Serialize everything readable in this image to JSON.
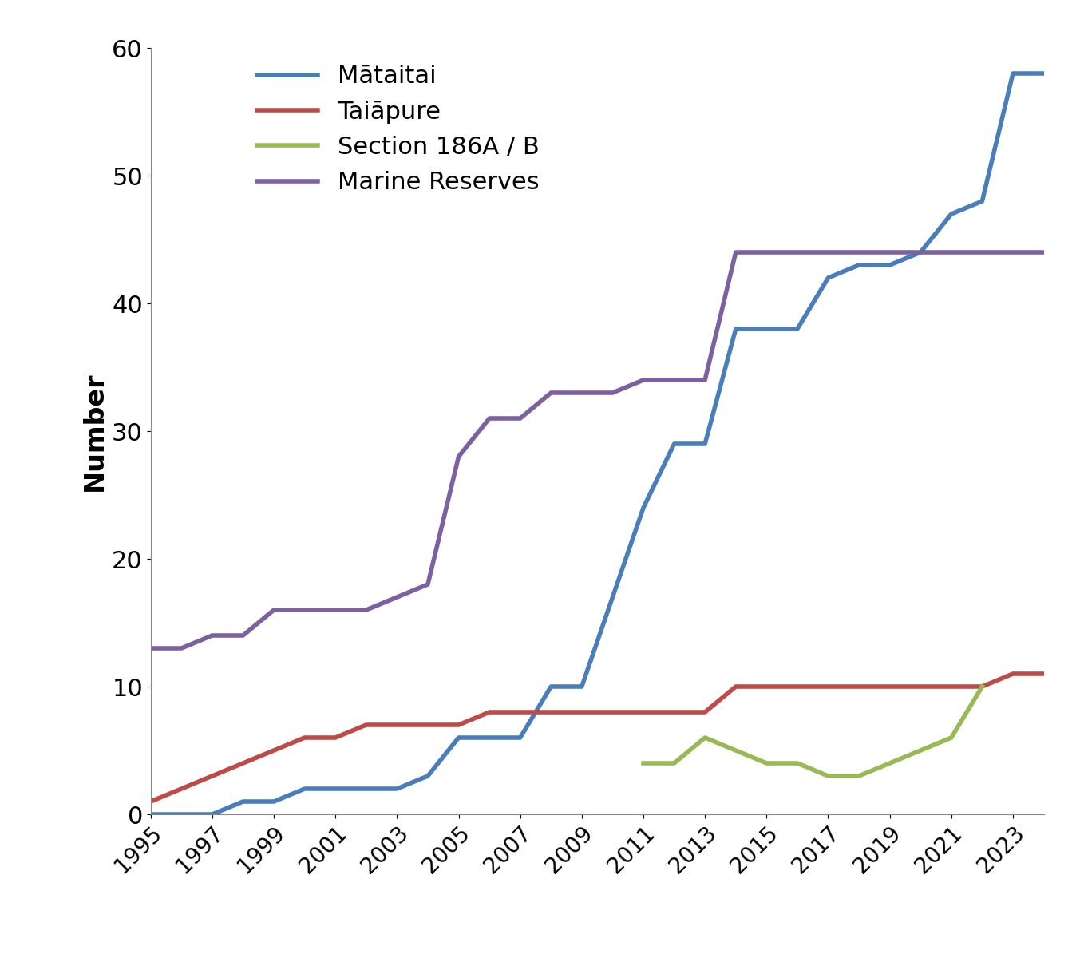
{
  "chart_data": {
    "type": "line",
    "y_label": "Number",
    "x": [
      1995,
      1996,
      1997,
      1998,
      1999,
      2000,
      2001,
      2002,
      2003,
      2004,
      2005,
      2006,
      2007,
      2008,
      2009,
      2010,
      2011,
      2012,
      2013,
      2014,
      2015,
      2016,
      2017,
      2018,
      2019,
      2020,
      2021,
      2022,
      2023,
      2024
    ],
    "series": [
      {
        "name": "Mātaitai",
        "color": "#4a7ebb",
        "values": [
          0,
          0,
          0,
          1,
          1,
          2,
          2,
          2,
          2,
          3,
          6,
          6,
          6,
          10,
          10,
          17,
          24,
          29,
          29,
          38,
          38,
          38,
          42,
          43,
          43,
          44,
          47,
          48,
          58,
          58
        ]
      },
      {
        "name": "Taiāpure",
        "color": "#be4b48",
        "values": [
          1,
          2,
          3,
          4,
          5,
          6,
          6,
          7,
          7,
          7,
          7,
          8,
          8,
          8,
          8,
          8,
          8,
          8,
          8,
          10,
          10,
          10,
          10,
          10,
          10,
          10,
          10,
          10,
          11,
          11
        ]
      },
      {
        "name": "Section 186A / B",
        "color": "#98b954",
        "values": [
          null,
          null,
          null,
          null,
          null,
          null,
          null,
          null,
          null,
          null,
          null,
          null,
          null,
          null,
          null,
          null,
          4,
          4,
          6,
          5,
          4,
          4,
          3,
          3,
          4,
          5,
          6,
          10,
          null,
          null
        ]
      },
      {
        "name": "Marine Reserves",
        "color": "#7d60a0",
        "values": [
          13,
          13,
          14,
          14,
          16,
          16,
          16,
          16,
          17,
          18,
          28,
          31,
          31,
          33,
          33,
          33,
          34,
          34,
          34,
          44,
          44,
          44,
          44,
          44,
          44,
          44,
          44,
          44,
          44,
          44
        ]
      }
    ],
    "xlim": [
      1995,
      2024
    ],
    "xticks": [
      1995,
      1997,
      1999,
      2001,
      2003,
      2005,
      2007,
      2009,
      2011,
      2013,
      2015,
      2017,
      2019,
      2021,
      2023
    ],
    "ylim": [
      0,
      60
    ],
    "yticks": [
      0,
      10,
      20,
      30,
      40,
      50,
      60
    ],
    "legend": "upper left",
    "grid": false
  }
}
